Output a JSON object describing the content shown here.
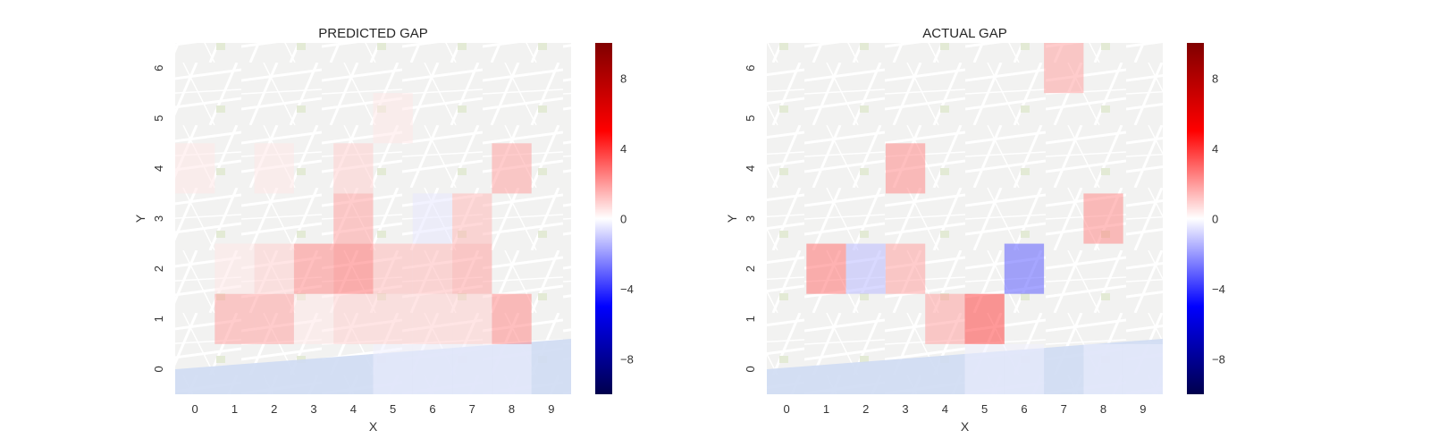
{
  "chart_data": [
    {
      "type": "heatmap",
      "title": "PREDICTED GAP",
      "xlabel": "X",
      "ylabel": "Y",
      "x_ticks": [
        "0",
        "1",
        "2",
        "3",
        "4",
        "5",
        "6",
        "7",
        "8",
        "9"
      ],
      "y_ticks": [
        "0",
        "1",
        "2",
        "3",
        "4",
        "5",
        "6"
      ],
      "grid": false,
      "background": "street map",
      "colorbar": {
        "min": -10,
        "max": 10,
        "ticks": [
          -8,
          -4,
          0,
          4,
          8
        ],
        "tick_labels": [
          "−8",
          "−4",
          "0",
          "4",
          "8"
        ],
        "colormap": "seismic"
      },
      "values": [
        [
          0,
          0,
          0,
          0,
          0,
          -0.3,
          -0.3,
          -0.3,
          -0.3,
          0
        ],
        [
          0,
          2,
          2,
          0.5,
          1,
          1,
          1,
          1,
          2.5,
          0
        ],
        [
          0,
          0.5,
          1,
          2.5,
          3,
          1.5,
          1.5,
          2,
          0,
          0
        ],
        [
          0,
          0,
          0,
          0,
          2,
          0,
          -0.5,
          1.5,
          0,
          0
        ],
        [
          0.5,
          0,
          0.5,
          0,
          1,
          0,
          0,
          0,
          2,
          0
        ],
        [
          0,
          0,
          0,
          0,
          0,
          0.5,
          0,
          0,
          0,
          0
        ],
        [
          0,
          0,
          0,
          0,
          0,
          0,
          0,
          0,
          0,
          0
        ]
      ]
    },
    {
      "type": "heatmap",
      "title": "ACTUAL GAP",
      "xlabel": "X",
      "ylabel": "Y",
      "x_ticks": [
        "0",
        "1",
        "2",
        "3",
        "4",
        "5",
        "6",
        "7",
        "8",
        "9"
      ],
      "y_ticks": [
        "0",
        "1",
        "2",
        "3",
        "4",
        "5",
        "6"
      ],
      "grid": false,
      "background": "street map",
      "colorbar": {
        "min": -10,
        "max": 10,
        "ticks": [
          -8,
          -4,
          0,
          4,
          8
        ],
        "tick_labels": [
          "−8",
          "−4",
          "0",
          "4",
          "8"
        ],
        "colormap": "seismic"
      },
      "values": [
        [
          0,
          0,
          0,
          0,
          0,
          -0.3,
          -0.3,
          0,
          -0.3,
          -0.3
        ],
        [
          0,
          0,
          0,
          0,
          2,
          4,
          0,
          0,
          0,
          0
        ],
        [
          0,
          3,
          -1.5,
          2,
          0,
          0,
          -3.5,
          0,
          0,
          0
        ],
        [
          0,
          0,
          0,
          0,
          0,
          0,
          0,
          0,
          2.5,
          0
        ],
        [
          0,
          0,
          0,
          2.5,
          0,
          0,
          0,
          0,
          0,
          0
        ],
        [
          0,
          0,
          0,
          0,
          0,
          0,
          0,
          0,
          0,
          0
        ],
        [
          0,
          0,
          0,
          0,
          0,
          0,
          0,
          2,
          0,
          0
        ]
      ]
    }
  ]
}
